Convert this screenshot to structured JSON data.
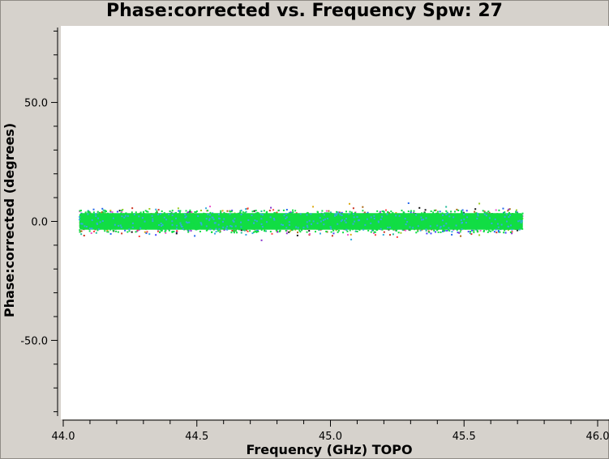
{
  "chart_data": {
    "type": "scatter",
    "title": "Phase:corrected vs. Frequency Spw: 27",
    "xlabel": "Frequency (GHz) TOPO",
    "ylabel": "Phase:corrected (degrees)",
    "xlim": [
      44.0,
      46.0
    ],
    "ylim": [
      -90,
      90
    ],
    "x_ticks": [
      44.0,
      44.5,
      45.0,
      45.5,
      46.0
    ],
    "x_tick_labels": [
      "44.0",
      "44.5",
      "45.0",
      "45.5",
      "46.0"
    ],
    "y_ticks": [
      50.0,
      0.0,
      -50.0
    ],
    "y_tick_labels": [
      "50.0",
      "0.0",
      "-50.0"
    ],
    "grid": false,
    "series_band": {
      "x_range": [
        44.06,
        45.72
      ],
      "center": 0.0,
      "core_half_width": 3.5,
      "spread_half_width": 5.5,
      "max_extent": 9.0
    },
    "colors": {
      "core": "#11dd44",
      "scatter": [
        "#111111",
        "#cc3322",
        "#ddaa11",
        "#8833cc",
        "#33aadd",
        "#ee55cc",
        "#2266ee",
        "#99cc22",
        "#22bb99",
        "#aa6611",
        "#ff4444",
        "#4444ff"
      ],
      "plot_bg": "#ffffff",
      "page_bg": "#d6d2cc"
    }
  }
}
